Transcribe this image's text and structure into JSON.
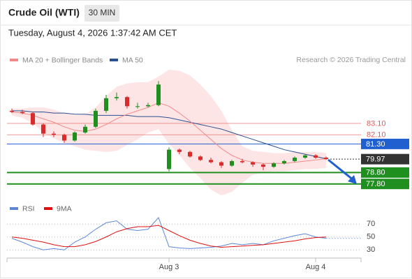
{
  "header": {
    "title": "Crude Oil (WTI)",
    "interval": "30 MIN",
    "timestamp": "Tuesday, August 4, 2026 1:37:42 AM CET",
    "credit": "Research © 2026 Trading Central"
  },
  "chart_data": [
    {
      "type": "candlestick",
      "categories": [
        null,
        null,
        null,
        null,
        null,
        null,
        null,
        null,
        null,
        null,
        null,
        null,
        null,
        null,
        null,
        "Aug 3",
        null,
        null,
        null,
        null,
        null,
        null,
        null,
        null,
        null,
        null,
        null,
        null,
        null,
        "Aug 4",
        null
      ],
      "open": [
        84.2,
        84.1,
        84.0,
        83.0,
        82.2,
        82.1,
        81.6,
        82.3,
        82.8,
        84.2,
        85.3,
        85.4,
        84.6,
        84.6,
        84.7,
        79.1,
        80.8,
        80.6,
        80.2,
        79.9,
        79.7,
        79.4,
        79.8,
        79.7,
        79.5,
        79.3,
        79.6,
        79.8,
        80.1,
        80.3,
        80.1
      ],
      "high": [
        84.4,
        84.3,
        84.1,
        83.1,
        82.4,
        82.2,
        82.4,
        83.0,
        84.4,
        85.6,
        85.8,
        85.5,
        84.9,
        84.9,
        86.8,
        81.0,
        80.9,
        80.7,
        80.3,
        80.1,
        79.8,
        79.9,
        80.0,
        79.8,
        79.6,
        79.7,
        79.9,
        80.2,
        80.4,
        80.4,
        80.2
      ],
      "low": [
        84.0,
        83.9,
        82.9,
        81.9,
        81.9,
        81.4,
        81.5,
        82.2,
        82.7,
        84.0,
        85.1,
        84.4,
        84.4,
        84.5,
        84.6,
        78.9,
        80.4,
        80.1,
        79.8,
        79.6,
        79.2,
        79.3,
        79.6,
        79.3,
        79.0,
        79.2,
        79.5,
        79.7,
        80.0,
        80.0,
        79.9
      ],
      "close": [
        84.1,
        84.0,
        83.0,
        82.2,
        82.1,
        81.6,
        82.3,
        82.8,
        84.2,
        85.3,
        85.4,
        84.6,
        84.6,
        84.7,
        86.5,
        80.8,
        80.6,
        80.2,
        79.9,
        79.7,
        79.4,
        79.8,
        79.7,
        79.5,
        79.3,
        79.6,
        79.8,
        80.1,
        80.3,
        80.1,
        79.97
      ],
      "up_color": "#1f8f1f",
      "down_color": "#d92b2b",
      "series": [
        {
          "name": "MA 20 + Bollinger Bands",
          "color": "#f08a8a",
          "band_color": "#fde0e0",
          "values": [
            84.1,
            84.0,
            83.8,
            83.5,
            83.2,
            82.8,
            82.5,
            82.4,
            82.6,
            83.0,
            83.5,
            83.9,
            84.2,
            84.5,
            84.9,
            84.6,
            84.0,
            83.3,
            82.5,
            81.7,
            80.9,
            80.3,
            79.9,
            79.7,
            79.6,
            79.6,
            79.6,
            79.7,
            79.8,
            79.9,
            80.0
          ],
          "upper": [
            84.4,
            84.4,
            84.5,
            84.5,
            84.3,
            84.0,
            83.8,
            83.9,
            84.5,
            85.5,
            86.3,
            86.6,
            86.7,
            86.7,
            87.2,
            87.8,
            87.7,
            87.3,
            86.5,
            85.5,
            84.2,
            82.5,
            81.1,
            80.7,
            80.6,
            80.5,
            80.5,
            80.6,
            80.6,
            80.6,
            80.5
          ],
          "lower": [
            83.8,
            83.6,
            83.1,
            82.3,
            81.8,
            81.4,
            81.1,
            80.8,
            80.7,
            80.6,
            80.7,
            81.2,
            81.7,
            82.3,
            82.6,
            81.3,
            80.3,
            79.2,
            78.3,
            77.3,
            76.8,
            77.1,
            77.9,
            78.6,
            78.8,
            78.9,
            78.9,
            79.0,
            79.1,
            79.1,
            79.2
          ]
        },
        {
          "name": "MA 50",
          "color": "#2a4f8f",
          "values": [
            84.2,
            84.2,
            84.1,
            84.1,
            84.0,
            84.0,
            83.9,
            83.9,
            83.8,
            83.8,
            83.8,
            83.8,
            83.7,
            83.7,
            83.7,
            83.6,
            83.4,
            83.2,
            83.0,
            82.8,
            82.6,
            82.3,
            82.0,
            81.7,
            81.4,
            81.1,
            80.8,
            80.6,
            80.4,
            80.2,
            80.0
          ]
        }
      ],
      "levels": [
        {
          "value": 83.1,
          "label": "83.10",
          "color": "#e05a5a",
          "box": false,
          "dash": false
        },
        {
          "value": 82.1,
          "label": "82.10",
          "color": "#e05a5a",
          "box": false,
          "dash": false
        },
        {
          "value": 81.3,
          "label": "81.30",
          "color": "#1f5fd0",
          "box": true,
          "dash": false
        },
        {
          "value": 79.97,
          "color": "#333333",
          "box": true,
          "dash": true
        },
        {
          "value": 78.8,
          "label": "78.80",
          "color": "#1f8f1f",
          "box": true,
          "dash": false
        },
        {
          "value": 77.8,
          "label": "77.80",
          "color": "#1f8f1f",
          "box": true,
          "dash": false
        }
      ],
      "ylim": [
        76.5,
        88.1
      ]
    },
    {
      "type": "line",
      "series": [
        {
          "name": "RSI",
          "color": "#5b87d9",
          "values": [
            48,
            42,
            35,
            30,
            32,
            30,
            42,
            50,
            62,
            72,
            75,
            62,
            60,
            62,
            80,
            35,
            33,
            32,
            33,
            34,
            36,
            40,
            38,
            40,
            38,
            44,
            48,
            52,
            55,
            50,
            48
          ]
        },
        {
          "name": "9MA",
          "color": "#e01010",
          "values": [
            50,
            48,
            45,
            42,
            38,
            35,
            35,
            38,
            43,
            50,
            58,
            63,
            66,
            66,
            68,
            60,
            52,
            45,
            40,
            36,
            34,
            35,
            36,
            37,
            38,
            40,
            42,
            44,
            47,
            49,
            50
          ]
        }
      ],
      "ylim": [
        20,
        80
      ],
      "yticks": [
        70,
        50,
        30
      ]
    }
  ]
}
